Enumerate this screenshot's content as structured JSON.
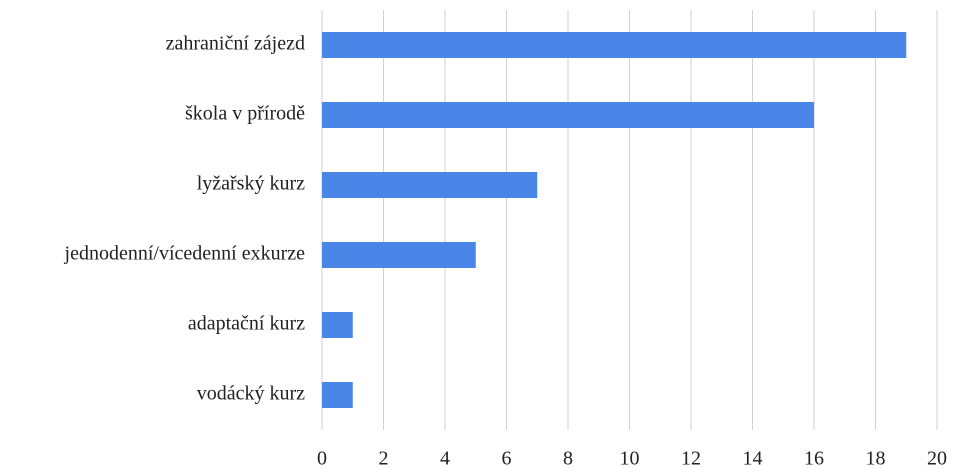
{
  "chart_data": {
    "type": "barh",
    "categories": [
      "zahraniční zájezd",
      "škola v přírodě",
      "lyžařský kurz",
      "jednodenní/vícedenní exkurze",
      "adaptační kurz",
      "vodácký kurz"
    ],
    "values": [
      19,
      16,
      7,
      5,
      1,
      1
    ],
    "color": "#4a86e8",
    "xlim": [
      0,
      20
    ],
    "xticks": [
      0,
      2,
      4,
      6,
      8,
      10,
      12,
      14,
      16,
      18,
      20
    ],
    "grid": true
  }
}
